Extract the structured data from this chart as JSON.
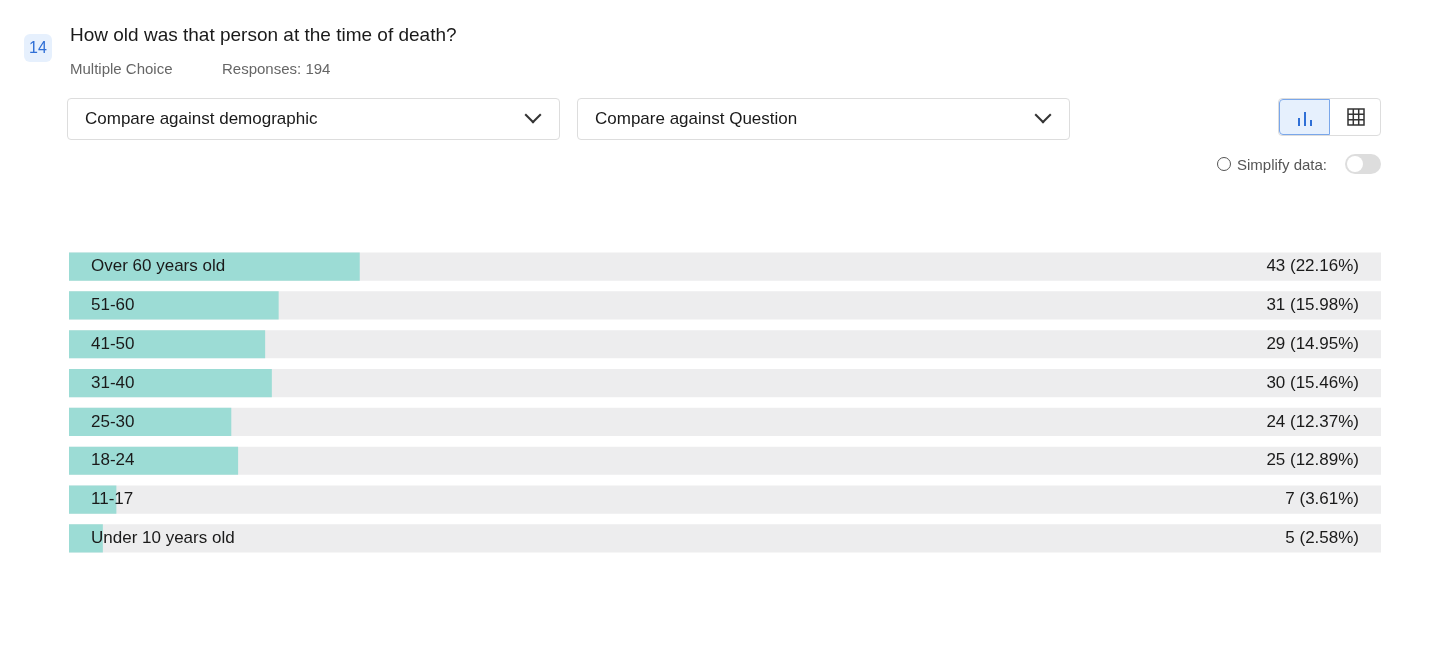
{
  "chart_data": {
    "type": "bar",
    "orientation": "horizontal",
    "title": "How old was that person at the time of death?",
    "annotations": [
      "14",
      "Multiple Choice",
      "Responses: 194",
      "Compare against demographic",
      "Compare against Question",
      "Simplify data:"
    ],
    "categories": [
      "Over 60 years old",
      "51-60",
      "41-50",
      "31-40",
      "25-30",
      "18-24",
      "11-17",
      "Under 10 years old"
    ],
    "values": [
      22.16,
      15.98,
      14.95,
      15.46,
      12.37,
      12.89,
      3.61,
      2.58
    ],
    "value_labels": [
      "43 (22.16%)",
      "31 (15.98%)",
      "29 (14.95%)",
      "30 (15.46%)",
      "24 (12.37%)",
      "25 (12.89%)",
      "7 (3.61%)",
      "5 (2.58%)"
    ],
    "color": "#9cdcd5",
    "xlim": [
      0,
      100
    ],
    "tick_labels": "y",
    "legend": false
  }
}
